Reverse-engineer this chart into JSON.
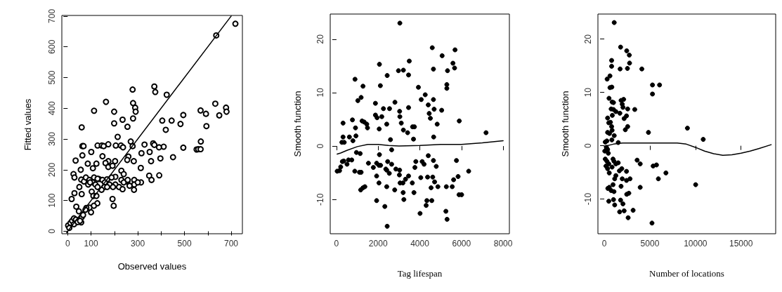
{
  "chart_data": [
    {
      "type": "scatter",
      "xlabel": "Observed values",
      "ylabel": "Fitted values",
      "xlim": [
        -25,
        748
      ],
      "ylim": [
        -8,
        702
      ],
      "xticks": [
        0,
        100,
        {
          "value": 200,
          "label": null
        },
        300,
        {
          "value": 400,
          "label": null
        },
        500,
        {
          "value": 600,
          "label": null
        },
        700
      ],
      "yticks": [
        0,
        100,
        200,
        300,
        400,
        500,
        600,
        700
      ],
      "grid": false,
      "series": [
        {
          "type": "scatter",
          "color": "#000000",
          "marker": "circle",
          "x": [
            718,
            636,
            371,
            375,
            278,
            424,
            164,
            280,
            632,
            289,
            113,
            199,
            291,
            678,
            680,
            569,
            592,
            649,
            495,
            235,
            280,
            483,
            405,
            445,
            199,
            256,
            60,
            594,
            420,
            214,
            270,
            570,
            63,
            68,
            128,
            146,
            154,
            174,
            206,
            228,
            237,
            278,
            329,
            366,
            371,
            411,
            391,
            495,
            552,
            559,
            569,
            34,
            63,
            101,
            149,
            174,
            203,
            260,
            255,
            283,
            316,
            351,
            357,
            397,
            451,
            25,
            29,
            56,
            86,
            108,
            123,
            162,
            174,
            192,
            230,
            240,
            204,
            58,
            70,
            78,
            93,
            113,
            134,
            149,
            169,
            188,
            230,
            255,
            285,
            88,
            108,
            119,
            128,
            159,
            179,
            204,
            220,
            240,
            257,
            103,
            128,
            157,
            145,
            169,
            194,
            235,
            284,
            313,
            349,
            359,
            392,
            314,
            285,
            50,
            60,
            96,
            29,
            17,
            110,
            123,
            127,
            112,
            100,
            93,
            80,
            76,
            192,
            197,
            37,
            48,
            60,
            66,
            58,
            2,
            12,
            19,
            27,
            35,
            27,
            7,
            43,
            53,
            265,
            300
          ],
          "values": [
            675,
            637,
            471,
            453,
            461,
            444,
            421,
            417,
            415,
            402,
            392,
            389,
            389,
            402,
            389,
            393,
            382,
            377,
            378,
            363,
            367,
            349,
            360,
            360,
            351,
            340,
            338,
            342,
            330,
            307,
            292,
            292,
            277,
            277,
            279,
            279,
            277,
            283,
            279,
            279,
            273,
            277,
            282,
            286,
            281,
            275,
            273,
            272,
            266,
            267,
            267,
            230,
            247,
            258,
            244,
            228,
            228,
            243,
            232,
            228,
            254,
            258,
            228,
            237,
            241,
            186,
            175,
            200,
            220,
            205,
            220,
            222,
            209,
            213,
            197,
            186,
            177,
            168,
            162,
            175,
            167,
            175,
            170,
            167,
            169,
            175,
            167,
            162,
            167,
            152,
            159,
            152,
            171,
            159,
            152,
            152,
            144,
            159,
            167,
            129,
            144,
            144,
            135,
            144,
            144,
            137,
            135,
            206,
            181,
            167,
            182,
            159,
            152,
            144,
            121,
            159,
            124,
            105,
            115,
            115,
            91,
            83,
            62,
            77,
            76,
            70,
            105,
            83,
            80,
            65,
            46,
            53,
            29,
            19,
            27,
            34,
            42,
            38,
            23,
            11,
            30,
            34,
            148,
            159
          ]
        },
        {
          "type": "line",
          "color": "#000000",
          "marker": "none",
          "line_style": "solid",
          "x": [
            -5,
            700
          ],
          "values": [
            -5,
            700
          ]
        }
      ]
    },
    {
      "type": "scatter",
      "xlabel": "Tag lifespan",
      "ylabel": "Smooth function",
      "xlim": [
        -300,
        8300
      ],
      "ylim": [
        -16.4,
        24.7
      ],
      "xticks": [
        0,
        2000,
        4000,
        6000,
        8000
      ],
      "yticks": [
        -10,
        0,
        10,
        20
      ],
      "grid": false,
      "series": [
        {
          "type": "scatter",
          "color": "#000000",
          "marker": "circle",
          "x": [
            3043,
            4598,
            5691,
            5071,
            5590,
            5669,
            2062,
            3494,
            3212,
            3460,
            2975,
            4654,
            5330,
            2434,
            890,
            2107,
            1273,
            3933,
            5297,
            5297,
            1025,
            1183,
            4260,
            4068,
            4654,
            2806,
            1870,
            4406,
            3460,
            2254,
            2547,
            4688,
            3032,
            5049,
            2175,
            1870,
            1949,
            3043,
            766,
            4451,
            4507,
            316,
            1228,
            1330,
            1454,
            3110,
            2412,
            4834,
            5894,
            3652,
            3742,
            913,
            1488,
            2051,
            3212,
            3415,
            7179,
            316,
            620,
            935,
            4665,
            259,
            372,
            789,
            3697,
            2592,
            34,
            147,
            203,
            282,
            349,
            507,
            575,
            733,
            879,
            1104,
            1183,
            958,
            1138,
            1533,
            1769,
            1927,
            2040,
            2119,
            2062,
            2367,
            2457,
            2536,
            2648,
            2851,
            3032,
            3020,
            1927,
            2412,
            1273,
            1364,
            1161,
            2040,
            2412,
            3054,
            3190,
            2795,
            3201,
            1927,
            2321,
            2434,
            3460,
            3313,
            3640,
            3719,
            3235,
            3764,
            3809,
            4113,
            4204,
            4406,
            4046,
            4012,
            4373,
            4339,
            4305,
            4575,
            4541,
            4710,
            4620,
            4654,
            4789,
            4868,
            5274,
            5252,
            5308,
            5556,
            5623,
            5759,
            5838,
            5883,
            6007,
            6345,
            2648
          ],
          "values": [
            23.0,
            18.4,
            18.0,
            16.9,
            15.5,
            14.6,
            15.3,
            15.9,
            14.2,
            13.3,
            14.1,
            14.4,
            14.1,
            13.2,
            12.5,
            11.3,
            11.2,
            11.0,
            11.5,
            10.8,
            8.5,
            9.1,
            9.6,
            8.7,
            8.7,
            8.2,
            8.0,
            7.7,
            7.2,
            7.0,
            7.0,
            6.9,
            6.5,
            6.7,
            5.5,
            5.8,
            5.3,
            5.5,
            4.9,
            6.1,
            5.2,
            4.3,
            4.7,
            4.5,
            4.1,
            4.3,
            4.1,
            4.1,
            4.7,
            3.6,
            3.6,
            3.4,
            3.4,
            3.2,
            3.0,
            2.5,
            2.5,
            1.7,
            1.7,
            1.9,
            1.7,
            0.7,
            0.7,
            1.0,
            1.3,
            1.2,
            -4.7,
            -4.6,
            -3.9,
            -2.9,
            -2.8,
            -3.4,
            -2.6,
            -2.6,
            -4.7,
            -4.9,
            -4.9,
            -1.2,
            -1.4,
            -3.2,
            -4.0,
            -3.2,
            -3.6,
            -3.6,
            -1.6,
            -4.3,
            -2.9,
            -5.1,
            -3.4,
            -4.3,
            -4.5,
            -5.4,
            -5.6,
            -4.5,
            -7.8,
            -7.6,
            -8.2,
            -6.9,
            -7.6,
            -6.9,
            -6.9,
            -8.2,
            -8.7,
            -10.2,
            -11.3,
            -15.0,
            -5.6,
            -6.2,
            -6.9,
            -8.7,
            -10.0,
            -4.0,
            -2.9,
            -2.9,
            -3.4,
            -1.8,
            -5.9,
            -12.6,
            -5.8,
            -10.2,
            -11.1,
            -10.2,
            -7.8,
            -6.7,
            -5.8,
            -2.7,
            -3.8,
            -7.6,
            -7.6,
            -12.2,
            -13.7,
            -7.6,
            -6.3,
            -2.7,
            -5.7,
            -9.1,
            -9.1,
            -4.7,
            -0.7
          ]
        },
        {
          "type": "line",
          "color": "#000000",
          "marker": "none",
          "line_style": "solid",
          "x": [
            34,
            200,
            500,
            1000,
            1500,
            2000,
            2500,
            3000,
            4000,
            5000,
            6000,
            7000,
            8000
          ],
          "values": [
            -1.5,
            -1.3,
            -0.8,
            -0.1,
            0.3,
            0.3,
            0.1,
            0.0,
            0.1,
            0.3,
            0.3,
            0.6,
            1.0
          ]
        }
      ]
    },
    {
      "type": "scatter",
      "xlabel": "Number of locations",
      "ylabel": "Smooth function",
      "xlim": [
        -700,
        18800
      ],
      "ylim": [
        -16.5,
        24.7
      ],
      "xticks": [
        0,
        5000,
        10000,
        15000
      ],
      "yticks": [
        -10,
        0,
        10,
        20
      ],
      "grid": false,
      "series": [
        {
          "type": "scatter",
          "color": "#000000",
          "marker": "circle",
          "x": [
            1088,
            1787,
            2460,
            2745,
            2771,
            803,
            1735,
            2538,
            4118,
            803,
            5284,
            6061,
            5284,
            311,
            622,
            829,
            622,
            518,
            855,
            1010,
            1839,
            2124,
            1968,
            751,
            1010,
            1269,
            2046,
            2564,
            3341,
            363,
            881,
            1709,
            2435,
            2176,
            492,
            673,
            803,
            2564,
            2305,
            4843,
            363,
            570,
            855,
            1088,
            9117,
            10852,
            104,
            285,
            829,
            1528,
            52,
            233,
            363,
            440,
            104,
            285,
            492,
            958,
            1062,
            1269,
            181,
            363,
            544,
            855,
            1528,
            1657,
            1917,
            2435,
            3600,
            3937,
            5361,
            5724,
            389,
            544,
            958,
            1140,
            1269,
            1968,
            2435,
            2823,
            5931,
            751,
            1062,
            1839,
            2460,
            2693,
            3937,
            6760,
            10023,
            492,
            1010,
            1787,
            2046,
            1140,
            1683,
            2176,
            3160,
            2616,
            5232
          ],
          "values": [
            23.1,
            18.5,
            17.8,
            17.0,
            15.5,
            14.9,
            14.4,
            14.5,
            14.4,
            16.0,
            11.4,
            11.4,
            9.7,
            12.5,
            13.1,
            11.0,
            10.9,
            8.9,
            8.2,
            8.1,
            8.5,
            8.7,
            7.8,
            6.9,
            6.8,
            6.4,
            7.2,
            6.9,
            6.8,
            5.2,
            5.7,
            6.1,
            5.6,
            5.1,
            4.3,
            4.4,
            3.6,
            3.6,
            3.0,
            2.5,
            2.5,
            2.3,
            2.9,
            1.9,
            3.3,
            1.2,
            0.7,
            0.9,
            1.1,
            0.6,
            -1.0,
            -0.3,
            -0.7,
            -1.4,
            -2.5,
            -2.9,
            -3.4,
            -2.5,
            -2.9,
            -3.4,
            -3.8,
            -4.3,
            -5.1,
            -4.0,
            -3.2,
            -4.7,
            -4.3,
            -4.8,
            -2.7,
            -3.4,
            -3.8,
            -3.6,
            -8.0,
            -7.8,
            -7.3,
            -6.2,
            -5.6,
            -6.2,
            -6.5,
            -6.2,
            -6.2,
            -8.4,
            -8.6,
            -7.6,
            -9.1,
            -8.9,
            -7.8,
            -5.1,
            -7.3,
            -10.4,
            -10.1,
            -10.2,
            -10.9,
            -11.1,
            -12.4,
            -12.2,
            -12.1,
            -13.5,
            -14.5
          ]
        },
        {
          "type": "line",
          "color": "#000000",
          "marker": "none",
          "line_style": "solid",
          "x": [
            0,
            1000,
            2000,
            5000,
            8000,
            9000,
            10000,
            11000,
            12000,
            13000,
            14000,
            15000,
            16000,
            17000,
            18300
          ],
          "values": [
            -0.1,
            0.3,
            0.5,
            0.5,
            0.5,
            0.3,
            -0.3,
            -1.0,
            -1.5,
            -1.8,
            -1.7,
            -1.4,
            -1.0,
            -0.5,
            0.2
          ]
        }
      ]
    }
  ]
}
